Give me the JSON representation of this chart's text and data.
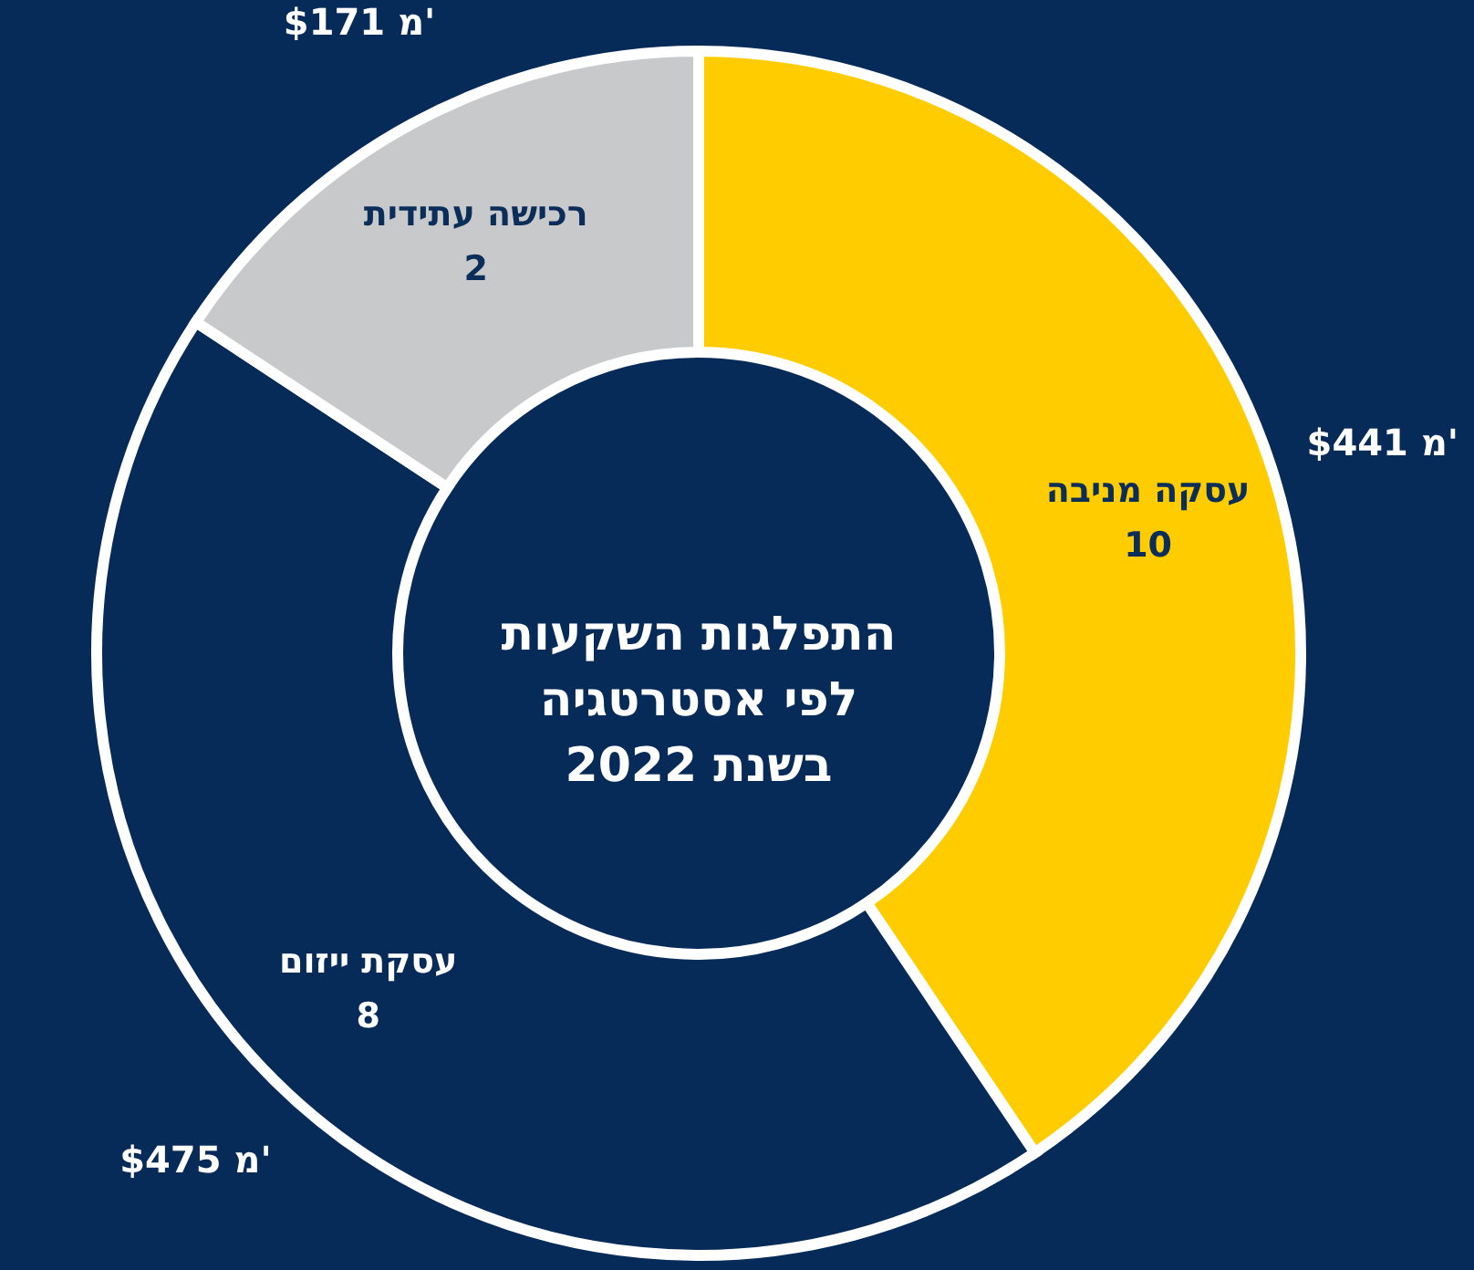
{
  "chart_data": {
    "type": "donut",
    "title": "התפלגות השקעות\nלפי אסטרטגיה\nבשנת 2022",
    "categories": [
      "עסקה מניבה",
      "עסקת ייזום",
      "רכישה עתידית"
    ],
    "values": [
      441,
      475,
      171
    ],
    "colors": [
      "#ffcc00",
      "#072b59",
      "#c8c9cb"
    ],
    "value_labels": [
      "$441 מ'",
      "$475 מ'",
      "$171 מ'"
    ],
    "annotations": [
      {
        "text": "10",
        "x": "עסקה מניבה"
      },
      {
        "text": "8",
        "x": "עסקת ייזום"
      },
      {
        "text": "2",
        "x": "רכישה עתידית"
      }
    ]
  }
}
